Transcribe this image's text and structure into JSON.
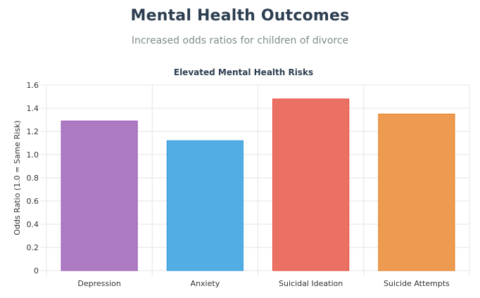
{
  "header": {
    "title": "Mental Health Outcomes",
    "subtitle": "Increased odds ratios for children of divorce"
  },
  "chart_data": {
    "type": "bar",
    "title": "Elevated Mental Health Risks",
    "xlabel": "",
    "ylabel": "Odds Ratio (1.0 = Same Risk)",
    "categories": [
      "Depression",
      "Anxiety",
      "Suicidal Ideation",
      "Suicide Attempts"
    ],
    "values": [
      1.29,
      1.12,
      1.48,
      1.35
    ],
    "ylim": [
      0,
      1.6
    ],
    "yticks": [
      "0",
      "0.2",
      "0.4",
      "0.6",
      "0.8",
      "1.0",
      "1.2",
      "1.4",
      "1.6"
    ],
    "grid": true,
    "colors": [
      {
        "fill": "#ad7bc2",
        "stroke": "#9b59b6"
      },
      {
        "fill": "#52ade3",
        "stroke": "#3498db"
      },
      {
        "fill": "#ec7165",
        "stroke": "#e74c3c"
      },
      {
        "fill": "#ec9b51",
        "stroke": "#e67e22"
      }
    ]
  }
}
